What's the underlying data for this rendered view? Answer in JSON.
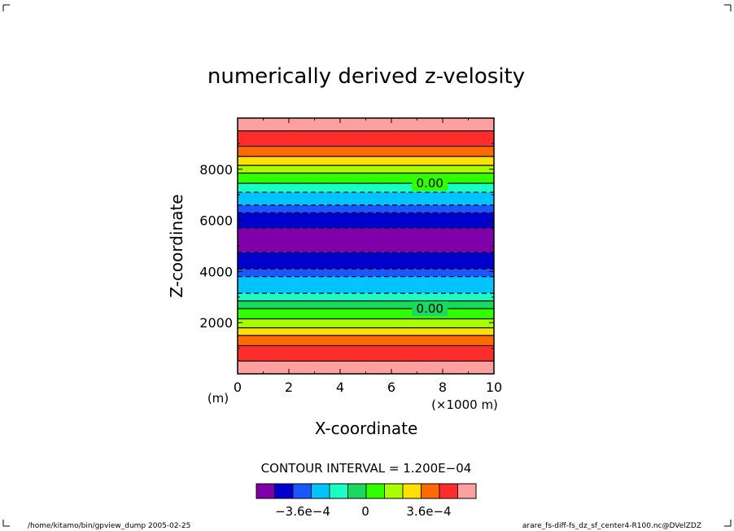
{
  "chart_data": {
    "type": "heatmap",
    "title": "numerically derived z-velosity",
    "xlabel": "X-coordinate",
    "ylabel": "Z-coordinate",
    "x_unit_left": "(m)",
    "x_unit_right": "(×1000 m)",
    "xlim": [
      0,
      10
    ],
    "ylim": [
      0,
      10000
    ],
    "xticks": [
      "0",
      "2",
      "4",
      "6",
      "8",
      "10"
    ],
    "yticks": [
      "2000",
      "4000",
      "6000",
      "8000"
    ],
    "contour_interval_label": "CONTOUR INTERVAL = 1.200E−04",
    "contour_labels": [
      "0.00",
      "0.00"
    ],
    "colorbar_ticks": [
      "−3.6e−4",
      "0",
      "3.6e−4"
    ],
    "colorbar_colors": [
      "#7f00a8",
      "#0000cd",
      "#1a57ff",
      "#00c3ff",
      "#1affc3",
      "#1ad95e",
      "#31ff00",
      "#a8ff00",
      "#ffe000",
      "#ff6a00",
      "#ff2c2c",
      "#ffa0a0"
    ],
    "bands": [
      {
        "z0": 0,
        "z1": 500,
        "color": "#ffa0a0"
      },
      {
        "z0": 500,
        "z1": 1100,
        "color": "#ff2c2c"
      },
      {
        "z0": 1100,
        "z1": 1500,
        "color": "#ff6a00"
      },
      {
        "z0": 1500,
        "z1": 1800,
        "color": "#ffe000"
      },
      {
        "z0": 1800,
        "z1": 2150,
        "color": "#a8ff00"
      },
      {
        "z0": 2150,
        "z1": 2550,
        "color": "#31ff00"
      },
      {
        "z0": 2550,
        "z1": 2850,
        "color": "#1ad95e"
      },
      {
        "z0": 2850,
        "z1": 3150,
        "color": "#1affc3"
      },
      {
        "z0": 3150,
        "z1": 3800,
        "color": "#00c3ff"
      },
      {
        "z0": 3800,
        "z1": 4100,
        "color": "#1a57ff"
      },
      {
        "z0": 4100,
        "z1": 4750,
        "color": "#0000cd"
      },
      {
        "z0": 4750,
        "z1": 5700,
        "color": "#7f00a8"
      },
      {
        "z0": 5700,
        "z1": 6300,
        "color": "#0000cd"
      },
      {
        "z0": 6300,
        "z1": 6600,
        "color": "#1a57ff"
      },
      {
        "z0": 6600,
        "z1": 7100,
        "color": "#00c3ff"
      },
      {
        "z0": 7100,
        "z1": 7450,
        "color": "#1affc3"
      },
      {
        "z0": 7450,
        "z1": 7850,
        "color": "#31ff00"
      },
      {
        "z0": 7850,
        "z1": 8150,
        "color": "#a8ff00"
      },
      {
        "z0": 8150,
        "z1": 8500,
        "color": "#ffe000"
      },
      {
        "z0": 8500,
        "z1": 8900,
        "color": "#ff6a00"
      },
      {
        "z0": 8900,
        "z1": 9500,
        "color": "#ff2c2c"
      },
      {
        "z0": 9500,
        "z1": 10000,
        "color": "#ffa0a0"
      }
    ],
    "contour_lines": [
      {
        "z": 500,
        "style": "solid"
      },
      {
        "z": 1100,
        "style": "solid"
      },
      {
        "z": 1500,
        "style": "solid"
      },
      {
        "z": 1800,
        "style": "solid"
      },
      {
        "z": 2150,
        "style": "solid"
      },
      {
        "z": 2550,
        "style": "solid"
      },
      {
        "z": 2850,
        "style": "solid"
      },
      {
        "z": 3150,
        "style": "dashed"
      },
      {
        "z": 3800,
        "style": "dashed"
      },
      {
        "z": 4100,
        "style": "dashed"
      },
      {
        "z": 4750,
        "style": "dashed"
      },
      {
        "z": 5700,
        "style": "dashed"
      },
      {
        "z": 6300,
        "style": "dashed"
      },
      {
        "z": 6600,
        "style": "dashed"
      },
      {
        "z": 7100,
        "style": "dashed"
      },
      {
        "z": 7450,
        "style": "solid"
      },
      {
        "z": 7850,
        "style": "solid"
      },
      {
        "z": 8150,
        "style": "solid"
      },
      {
        "z": 8500,
        "style": "solid"
      },
      {
        "z": 8900,
        "style": "solid"
      },
      {
        "z": 9500,
        "style": "solid"
      }
    ],
    "contour_label_positions": [
      {
        "x": 7.5,
        "z": 7450
      },
      {
        "x": 7.5,
        "z": 2550
      }
    ]
  },
  "footer": {
    "left": "/home/kitamo/bin/gpview_dump  2005-02-25",
    "right": "arare_fs-diff-fs_dz_sf_center4-R100.nc@DVelZDZ"
  }
}
